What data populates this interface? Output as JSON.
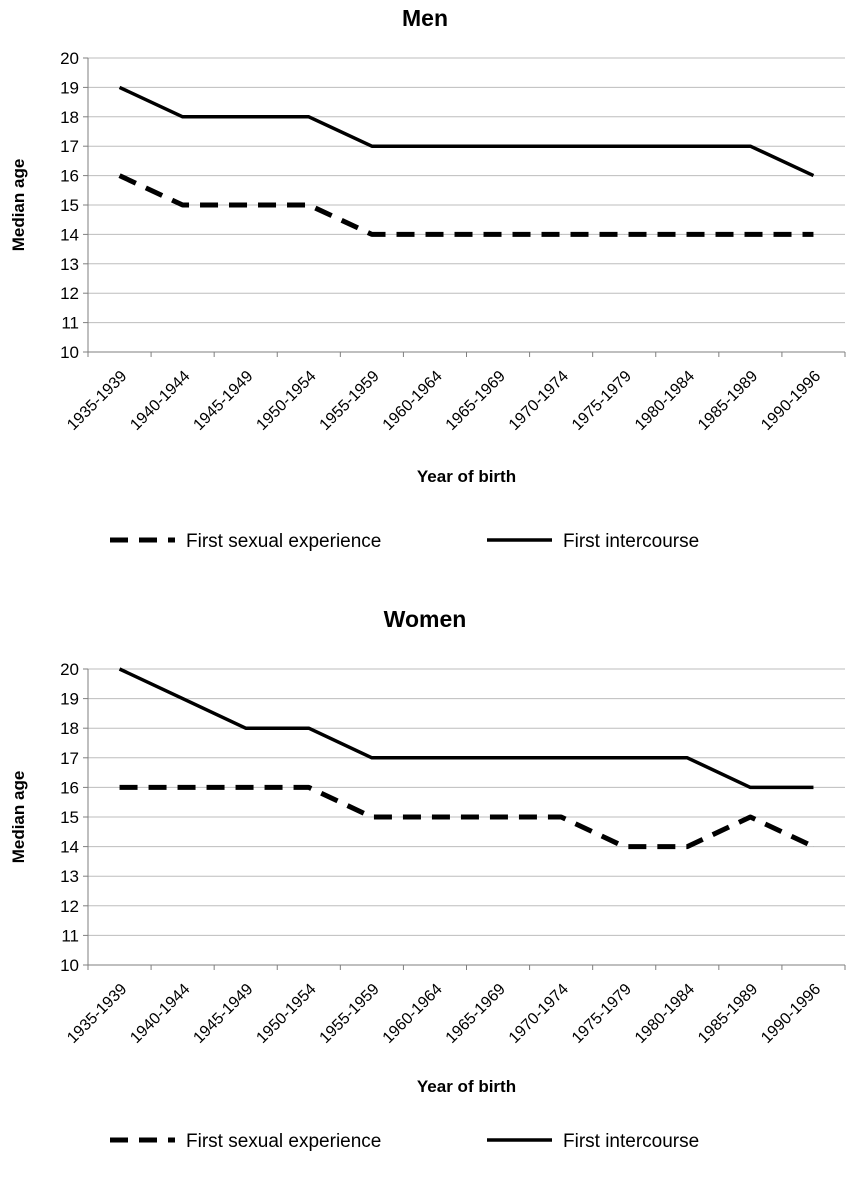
{
  "chart_data": [
    {
      "type": "line",
      "title": "Men",
      "xlabel": "Year of birth",
      "ylabel": "Median age",
      "ylim": [
        10,
        20
      ],
      "yticks": [
        10,
        11,
        12,
        13,
        14,
        15,
        16,
        17,
        18,
        19,
        20
      ],
      "grid": true,
      "legend_position": "bottom",
      "categories": [
        "1935-1939",
        "1940-1944",
        "1945-1949",
        "1950-1954",
        "1955-1959",
        "1960-1964",
        "1965-1969",
        "1970-1974",
        "1975-1979",
        "1980-1984",
        "1985-1989",
        "1990-1996"
      ],
      "series": [
        {
          "name": "First sexual experience",
          "style": "dashed",
          "color": "#000000",
          "values": [
            16,
            15,
            15,
            15,
            14,
            14,
            14,
            14,
            14,
            14,
            14,
            14
          ]
        },
        {
          "name": "First intercourse",
          "style": "solid",
          "color": "#000000",
          "values": [
            19,
            18,
            18,
            18,
            17,
            17,
            17,
            17,
            17,
            17,
            17,
            16
          ]
        }
      ]
    },
    {
      "type": "line",
      "title": "Women",
      "xlabel": "Year of birth",
      "ylabel": "Median age",
      "ylim": [
        10,
        20
      ],
      "yticks": [
        10,
        11,
        12,
        13,
        14,
        15,
        16,
        17,
        18,
        19,
        20
      ],
      "grid": true,
      "legend_position": "bottom",
      "categories": [
        "1935-1939",
        "1940-1944",
        "1945-1949",
        "1950-1954",
        "1955-1959",
        "1960-1964",
        "1965-1969",
        "1970-1974",
        "1975-1979",
        "1980-1984",
        "1985-1989",
        "1990-1996"
      ],
      "series": [
        {
          "name": "First sexual experience",
          "style": "dashed",
          "color": "#000000",
          "values": [
            16,
            16,
            16,
            16,
            15,
            15,
            15,
            15,
            14,
            14,
            15,
            14
          ]
        },
        {
          "name": "First intercourse",
          "style": "solid",
          "color": "#000000",
          "values": [
            20,
            19,
            18,
            18,
            17,
            17,
            17,
            17,
            17,
            17,
            16,
            16
          ]
        }
      ]
    }
  ]
}
